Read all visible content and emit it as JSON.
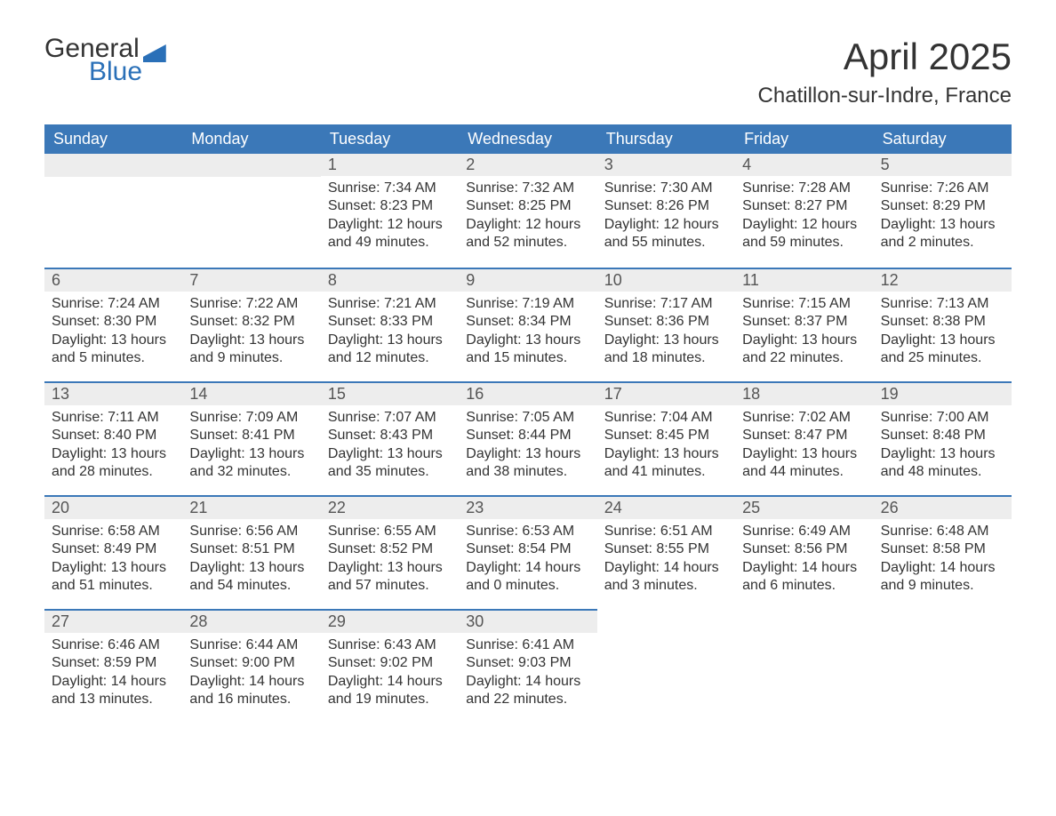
{
  "logo": {
    "line1": "General",
    "line2": "Blue"
  },
  "title": "April 2025",
  "location": "Chatillon-sur-Indre, France",
  "colors": {
    "header_bg": "#3b78b8",
    "header_text": "#ffffff",
    "date_row_bg": "#ededed",
    "date_text": "#555555",
    "body_text": "#333333",
    "accent_border": "#3b78b8",
    "logo_blue": "#2a70b8",
    "background": "#ffffff"
  },
  "typography": {
    "title_fontsize": 42,
    "location_fontsize": 24,
    "dayheader_fontsize": 18,
    "date_fontsize": 18,
    "detail_fontsize": 16,
    "font_family": "Arial"
  },
  "day_names": [
    "Sunday",
    "Monday",
    "Tuesday",
    "Wednesday",
    "Thursday",
    "Friday",
    "Saturday"
  ],
  "weeks": [
    [
      {
        "empty": true
      },
      {
        "empty": true
      },
      {
        "date": "1",
        "sunrise": "Sunrise: 7:34 AM",
        "sunset": "Sunset: 8:23 PM",
        "daylight1": "Daylight: 12 hours",
        "daylight2": "and 49 minutes."
      },
      {
        "date": "2",
        "sunrise": "Sunrise: 7:32 AM",
        "sunset": "Sunset: 8:25 PM",
        "daylight1": "Daylight: 12 hours",
        "daylight2": "and 52 minutes."
      },
      {
        "date": "3",
        "sunrise": "Sunrise: 7:30 AM",
        "sunset": "Sunset: 8:26 PM",
        "daylight1": "Daylight: 12 hours",
        "daylight2": "and 55 minutes."
      },
      {
        "date": "4",
        "sunrise": "Sunrise: 7:28 AM",
        "sunset": "Sunset: 8:27 PM",
        "daylight1": "Daylight: 12 hours",
        "daylight2": "and 59 minutes."
      },
      {
        "date": "5",
        "sunrise": "Sunrise: 7:26 AM",
        "sunset": "Sunset: 8:29 PM",
        "daylight1": "Daylight: 13 hours",
        "daylight2": "and 2 minutes."
      }
    ],
    [
      {
        "date": "6",
        "sunrise": "Sunrise: 7:24 AM",
        "sunset": "Sunset: 8:30 PM",
        "daylight1": "Daylight: 13 hours",
        "daylight2": "and 5 minutes."
      },
      {
        "date": "7",
        "sunrise": "Sunrise: 7:22 AM",
        "sunset": "Sunset: 8:32 PM",
        "daylight1": "Daylight: 13 hours",
        "daylight2": "and 9 minutes."
      },
      {
        "date": "8",
        "sunrise": "Sunrise: 7:21 AM",
        "sunset": "Sunset: 8:33 PM",
        "daylight1": "Daylight: 13 hours",
        "daylight2": "and 12 minutes."
      },
      {
        "date": "9",
        "sunrise": "Sunrise: 7:19 AM",
        "sunset": "Sunset: 8:34 PM",
        "daylight1": "Daylight: 13 hours",
        "daylight2": "and 15 minutes."
      },
      {
        "date": "10",
        "sunrise": "Sunrise: 7:17 AM",
        "sunset": "Sunset: 8:36 PM",
        "daylight1": "Daylight: 13 hours",
        "daylight2": "and 18 minutes."
      },
      {
        "date": "11",
        "sunrise": "Sunrise: 7:15 AM",
        "sunset": "Sunset: 8:37 PM",
        "daylight1": "Daylight: 13 hours",
        "daylight2": "and 22 minutes."
      },
      {
        "date": "12",
        "sunrise": "Sunrise: 7:13 AM",
        "sunset": "Sunset: 8:38 PM",
        "daylight1": "Daylight: 13 hours",
        "daylight2": "and 25 minutes."
      }
    ],
    [
      {
        "date": "13",
        "sunrise": "Sunrise: 7:11 AM",
        "sunset": "Sunset: 8:40 PM",
        "daylight1": "Daylight: 13 hours",
        "daylight2": "and 28 minutes."
      },
      {
        "date": "14",
        "sunrise": "Sunrise: 7:09 AM",
        "sunset": "Sunset: 8:41 PM",
        "daylight1": "Daylight: 13 hours",
        "daylight2": "and 32 minutes."
      },
      {
        "date": "15",
        "sunrise": "Sunrise: 7:07 AM",
        "sunset": "Sunset: 8:43 PM",
        "daylight1": "Daylight: 13 hours",
        "daylight2": "and 35 minutes."
      },
      {
        "date": "16",
        "sunrise": "Sunrise: 7:05 AM",
        "sunset": "Sunset: 8:44 PM",
        "daylight1": "Daylight: 13 hours",
        "daylight2": "and 38 minutes."
      },
      {
        "date": "17",
        "sunrise": "Sunrise: 7:04 AM",
        "sunset": "Sunset: 8:45 PM",
        "daylight1": "Daylight: 13 hours",
        "daylight2": "and 41 minutes."
      },
      {
        "date": "18",
        "sunrise": "Sunrise: 7:02 AM",
        "sunset": "Sunset: 8:47 PM",
        "daylight1": "Daylight: 13 hours",
        "daylight2": "and 44 minutes."
      },
      {
        "date": "19",
        "sunrise": "Sunrise: 7:00 AM",
        "sunset": "Sunset: 8:48 PM",
        "daylight1": "Daylight: 13 hours",
        "daylight2": "and 48 minutes."
      }
    ],
    [
      {
        "date": "20",
        "sunrise": "Sunrise: 6:58 AM",
        "sunset": "Sunset: 8:49 PM",
        "daylight1": "Daylight: 13 hours",
        "daylight2": "and 51 minutes."
      },
      {
        "date": "21",
        "sunrise": "Sunrise: 6:56 AM",
        "sunset": "Sunset: 8:51 PM",
        "daylight1": "Daylight: 13 hours",
        "daylight2": "and 54 minutes."
      },
      {
        "date": "22",
        "sunrise": "Sunrise: 6:55 AM",
        "sunset": "Sunset: 8:52 PM",
        "daylight1": "Daylight: 13 hours",
        "daylight2": "and 57 minutes."
      },
      {
        "date": "23",
        "sunrise": "Sunrise: 6:53 AM",
        "sunset": "Sunset: 8:54 PM",
        "daylight1": "Daylight: 14 hours",
        "daylight2": "and 0 minutes."
      },
      {
        "date": "24",
        "sunrise": "Sunrise: 6:51 AM",
        "sunset": "Sunset: 8:55 PM",
        "daylight1": "Daylight: 14 hours",
        "daylight2": "and 3 minutes."
      },
      {
        "date": "25",
        "sunrise": "Sunrise: 6:49 AM",
        "sunset": "Sunset: 8:56 PM",
        "daylight1": "Daylight: 14 hours",
        "daylight2": "and 6 minutes."
      },
      {
        "date": "26",
        "sunrise": "Sunrise: 6:48 AM",
        "sunset": "Sunset: 8:58 PM",
        "daylight1": "Daylight: 14 hours",
        "daylight2": "and 9 minutes."
      }
    ],
    [
      {
        "date": "27",
        "sunrise": "Sunrise: 6:46 AM",
        "sunset": "Sunset: 8:59 PM",
        "daylight1": "Daylight: 14 hours",
        "daylight2": "and 13 minutes."
      },
      {
        "date": "28",
        "sunrise": "Sunrise: 6:44 AM",
        "sunset": "Sunset: 9:00 PM",
        "daylight1": "Daylight: 14 hours",
        "daylight2": "and 16 minutes."
      },
      {
        "date": "29",
        "sunrise": "Sunrise: 6:43 AM",
        "sunset": "Sunset: 9:02 PM",
        "daylight1": "Daylight: 14 hours",
        "daylight2": "and 19 minutes."
      },
      {
        "date": "30",
        "sunrise": "Sunrise: 6:41 AM",
        "sunset": "Sunset: 9:03 PM",
        "daylight1": "Daylight: 14 hours",
        "daylight2": "and 22 minutes."
      },
      {
        "empty": true,
        "noBorder": true
      },
      {
        "empty": true,
        "noBorder": true
      },
      {
        "empty": true,
        "noBorder": true
      }
    ]
  ]
}
